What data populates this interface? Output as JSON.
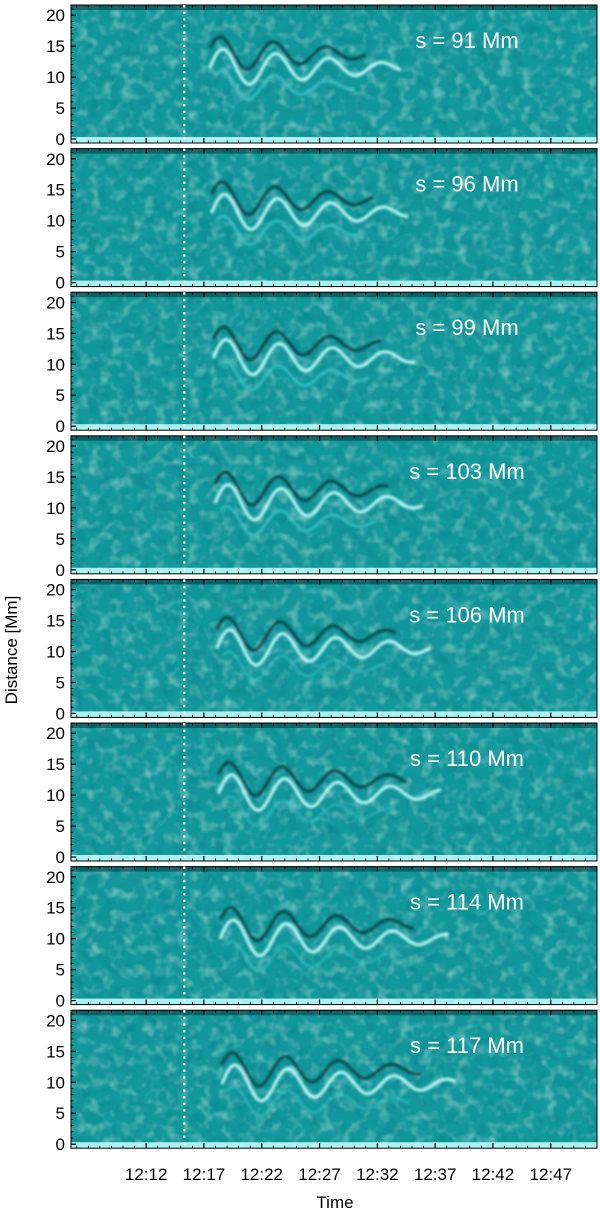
{
  "chart_data": {
    "type": "heatmap",
    "description_type": "stacked time-distance diagrams",
    "xlabel": "Time",
    "ylabel": "Distance [Mm]",
    "x_tick_labels": [
      "12:12",
      "12:17",
      "12:22",
      "12:27",
      "12:32",
      "12:37",
      "12:42",
      "12:47"
    ],
    "x_tick_minutes": [
      12,
      17,
      22,
      27,
      32,
      37,
      42,
      47
    ],
    "xlim_minutes": [
      5.5,
      51
    ],
    "ylim": [
      0,
      21
    ],
    "y_ticks": [
      0,
      5,
      10,
      15,
      20
    ],
    "marker_time_minutes": 15.3,
    "marker_style": "white dotted vertical line",
    "colormap": [
      "#04363b",
      "#0a6a70",
      "#12979b",
      "#3cc7c9",
      "#c8ffff"
    ],
    "background_color": "#12979b",
    "panels": [
      {
        "label": "s = 91 Mm",
        "s_Mm": 91
      },
      {
        "label": "s = 96 Mm",
        "s_Mm": 96
      },
      {
        "label": "s = 99 Mm",
        "s_Mm": 99
      },
      {
        "label": "s = 103 Mm",
        "s_Mm": 103
      },
      {
        "label": "s = 106 Mm",
        "s_Mm": 106
      },
      {
        "label": "s = 110 Mm",
        "s_Mm": 110
      },
      {
        "label": "s = 114 Mm",
        "s_Mm": 114
      },
      {
        "label": "s = 117 Mm",
        "s_Mm": 117
      }
    ]
  }
}
